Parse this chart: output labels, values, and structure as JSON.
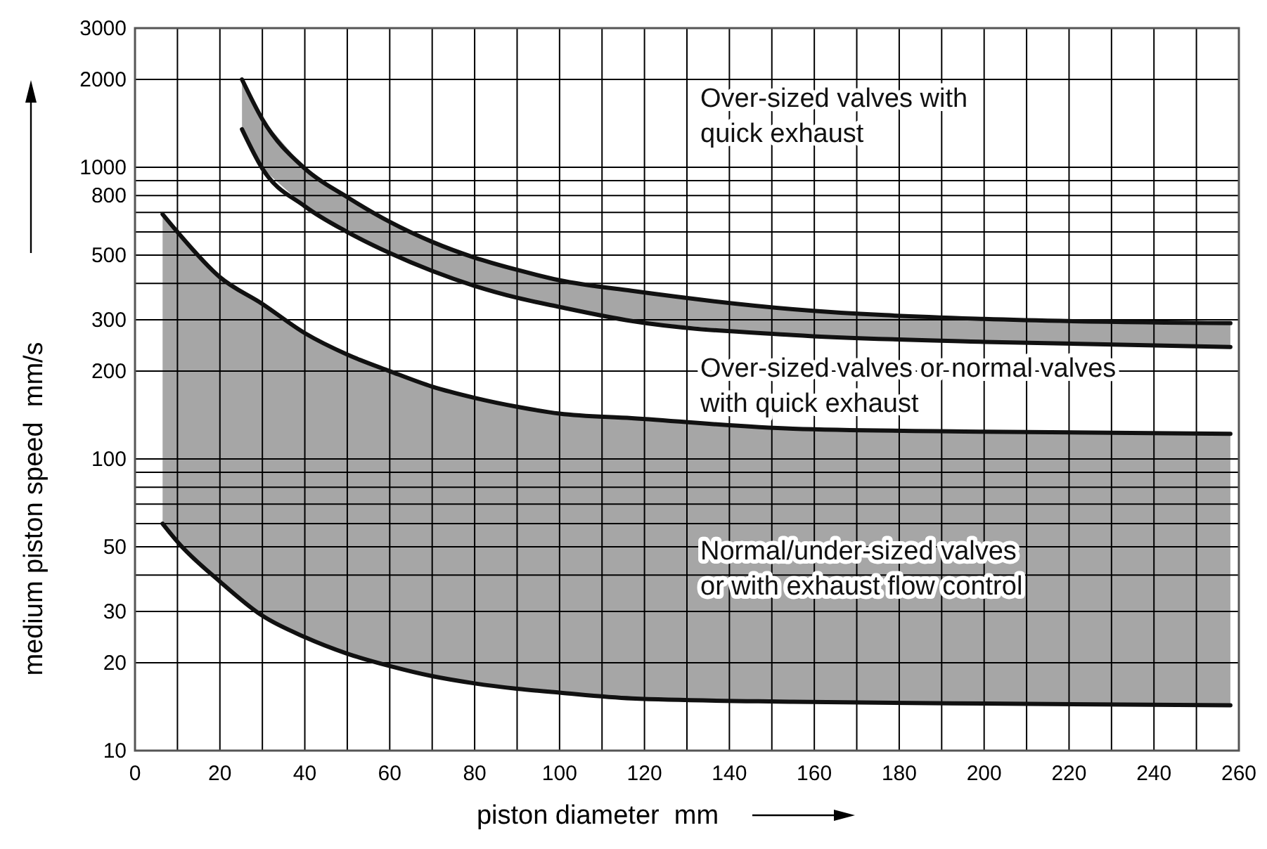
{
  "chart_data": {
    "type": "line",
    "xlabel": "piston diameter  mm",
    "ylabel": "medium piston speed  mm/s",
    "log": "y",
    "grid": true,
    "xlim": [
      0,
      260
    ],
    "ylim": [
      10,
      3000
    ],
    "xticks": [
      0,
      {
        "value": 10,
        "label": null
      },
      20,
      {
        "value": 30,
        "label": null
      },
      40,
      {
        "value": 50,
        "label": null
      },
      60,
      {
        "value": 70,
        "label": null
      },
      80,
      {
        "value": 90,
        "label": null
      },
      100,
      {
        "value": 110,
        "label": null
      },
      120,
      {
        "value": 130,
        "label": null
      },
      140,
      {
        "value": 150,
        "label": null
      },
      160,
      {
        "value": 170,
        "label": null
      },
      180,
      {
        "value": 190,
        "label": null
      },
      200,
      {
        "value": 210,
        "label": null
      },
      220,
      {
        "value": 230,
        "label": null
      },
      240,
      {
        "value": 250,
        "label": null
      },
      260
    ],
    "yticks": [
      10,
      20,
      30,
      {
        "value": 40,
        "label": null
      },
      50,
      {
        "value": 60,
        "label": null
      },
      {
        "value": 70,
        "label": null
      },
      {
        "value": 80,
        "label": null
      },
      {
        "value": 90,
        "label": null
      },
      100,
      200,
      300,
      {
        "value": 400,
        "label": null
      },
      500,
      {
        "value": 600,
        "label": null
      },
      {
        "value": 700,
        "label": null
      },
      800,
      {
        "value": 900,
        "label": null
      },
      1000,
      2000,
      3000
    ],
    "series": [
      {
        "color": "#111111",
        "x": [
          6.5,
          10,
          20,
          30,
          40,
          50,
          60,
          70,
          80,
          90,
          100,
          117,
          155,
          200,
          258
        ],
        "values": [
          690,
          600,
          420,
          340,
          270,
          228,
          200,
          177,
          162,
          151,
          143,
          138,
          127,
          124,
          122
        ],
        "upper": [
          690,
          600,
          420,
          340,
          270,
          228,
          200,
          177,
          162,
          151,
          143,
          138,
          127,
          124,
          122
        ],
        "lower": [
          60,
          52,
          38,
          29,
          24.5,
          21.5,
          19.5,
          18,
          17,
          16.3,
          15.8,
          15.1,
          14.7,
          14.5,
          14.3
        ]
      },
      {
        "color": "#111111",
        "x": [
          6.5,
          10,
          20,
          30,
          40,
          50,
          60,
          70,
          80,
          90,
          100,
          117,
          155,
          200,
          258
        ],
        "values": [
          60,
          52,
          38,
          29,
          24.5,
          21.5,
          19.5,
          18,
          17,
          16.3,
          15.8,
          15.1,
          14.7,
          14.5,
          14.3
        ]
      },
      {
        "color": "#111111",
        "x": [
          25.2,
          30,
          40,
          50,
          60,
          70,
          80,
          90,
          100,
          117,
          155,
          200,
          258
        ],
        "values": [
          2000,
          1460,
          990,
          790,
          650,
          555,
          490,
          445,
          410,
          377,
          326,
          302,
          292
        ],
        "upper": [
          2000,
          1460,
          990,
          790,
          650,
          555,
          490,
          445,
          410,
          377,
          326,
          302,
          292
        ],
        "lower": [
          1350,
          990,
          735,
          600,
          508,
          441,
          392,
          357,
          332,
          297,
          266,
          252,
          242
        ]
      },
      {
        "color": "#111111",
        "x": [
          25.2,
          30,
          40,
          50,
          60,
          70,
          80,
          90,
          100,
          117,
          155,
          200,
          258
        ],
        "values": [
          1350,
          990,
          735,
          600,
          508,
          441,
          392,
          357,
          332,
          297,
          266,
          252,
          242
        ]
      }
    ],
    "annotations": [
      "Over-sized valves with\nquick exhaust",
      "Over-sized valves or normal valves\nwith quick exhaust",
      "Normal/under-sized valves\nor with exhaust flow control"
    ]
  }
}
